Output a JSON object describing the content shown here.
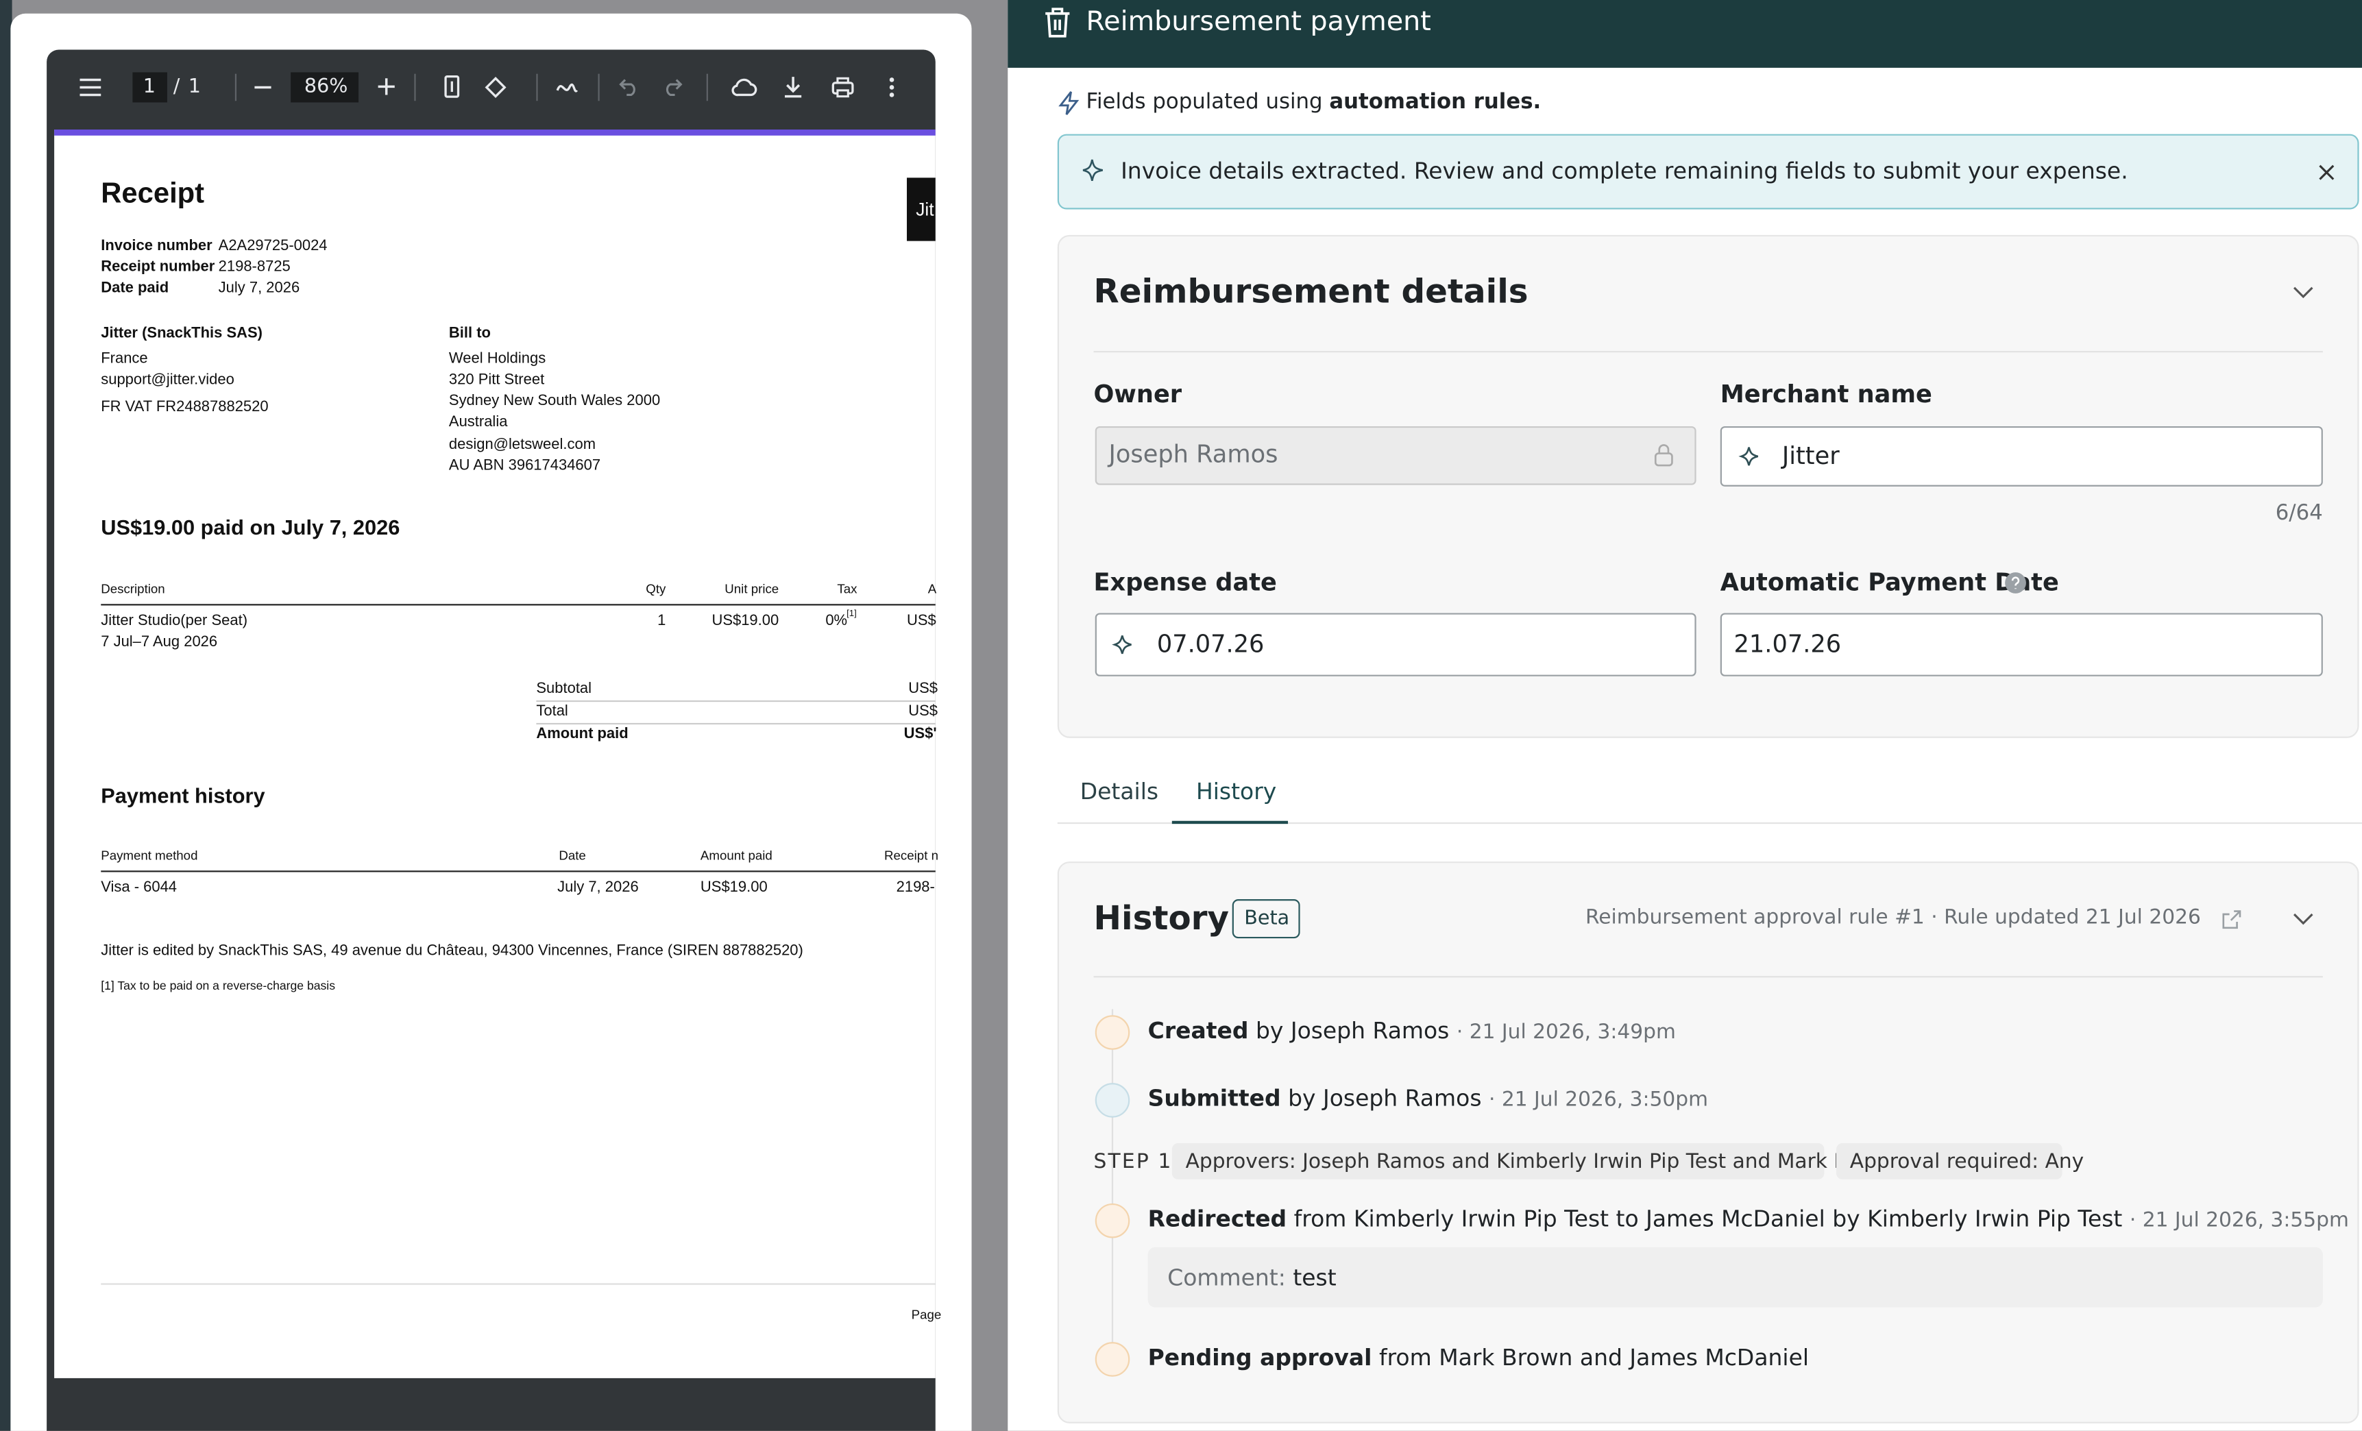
{
  "pdf_viewer": {
    "page_current": "1",
    "page_sep": "/",
    "page_total": "1",
    "zoom": "86%"
  },
  "receipt": {
    "title": "Receipt",
    "logo": "Jit",
    "meta": [
      [
        "Invoice number",
        "A2A29725-0024"
      ],
      [
        "Receipt number",
        "2198-8725"
      ],
      [
        "Date paid",
        "July 7, 2026"
      ]
    ],
    "seller": {
      "name": "Jitter (SnackThis SAS)",
      "lines": [
        "France",
        "support@jitter.video",
        "FR VAT  FR24887882520"
      ]
    },
    "bill_to": {
      "label": "Bill to",
      "lines": [
        "Weel Holdings",
        "320 Pitt Street",
        "Sydney New South Wales 2000",
        "Australia",
        "design@letsweel.com",
        "AU ABN  39617434607"
      ]
    },
    "amount_heading": "US$19.00 paid on July 7, 2026",
    "line_headers": [
      "Description",
      "Qty",
      "Unit price",
      "Tax",
      "A"
    ],
    "line_row": {
      "description": "Jitter Studio(per Seat)",
      "period": "7 Jul–7 Aug 2026",
      "qty": "1",
      "unit_price": "US$19.00",
      "tax": "0%",
      "tax_note": "[1]",
      "amount": "US$"
    },
    "totals": [
      [
        "Subtotal",
        "US$"
      ],
      [
        "Total",
        "US$"
      ],
      [
        "Amount paid",
        "US$'"
      ]
    ],
    "payment_history": {
      "title": "Payment history",
      "headers": [
        "Payment method",
        "Date",
        "Amount paid",
        "Receipt n"
      ],
      "row": [
        "Visa - 6044",
        "July 7, 2026",
        "US$19.00",
        "2198-"
      ]
    },
    "footer_note": "Jitter is edited by SnackThis SAS, 49 avenue du Château, 94300 Vincennes, France (SIREN 887882520)",
    "footnote": "[1] Tax to be paid on a reverse-charge basis",
    "page_label": "Page"
  },
  "panel": {
    "header_title": "Reimbursement payment",
    "automation": {
      "prefix": "Fields populated using",
      "bold": "automation rules."
    },
    "banner": "Invoice details extracted. Review and complete remaining fields to submit your expense.",
    "details": {
      "title": "Reimbursement details",
      "owner_label": "Owner",
      "owner_value": "Joseph Ramos",
      "merchant_label": "Merchant name",
      "merchant_value": "Jitter",
      "merchant_count": "6/64",
      "expense_date_label": "Expense date",
      "expense_date_value": "07.07.26",
      "auto_date_label": "Automatic Payment Date",
      "auto_date_value": "21.07.26"
    },
    "tabs": [
      "Details",
      "History"
    ],
    "history": {
      "title": "History",
      "badge": "Beta",
      "rule_info": "Reimbursement approval rule #1 · Rule updated 21 Jul 2026",
      "created": {
        "action": "Created",
        "detail": "by Joseph Ramos",
        "time": "· 21 Jul 2026, 3:49pm"
      },
      "submitted": {
        "action": "Submitted",
        "detail": "by Joseph Ramos",
        "time": "· 21 Jul 2026, 3:50pm"
      },
      "step": {
        "label": "STEP 1",
        "chips": [
          "Approvers: Joseph Ramos and Kimberly Irwin Pip Test and Mark Brown",
          "Approval required: Any"
        ]
      },
      "redirected": {
        "action": "Redirected",
        "detail": "from Kimberly Irwin Pip Test to James McDaniel by Kimberly Irwin Pip Test",
        "time": "· 21 Jul 2026, 3:55pm"
      },
      "comment": {
        "label": "Comment:",
        "text": "test"
      },
      "pending": {
        "action": "Pending approval",
        "detail": "from Mark Brown and James McDaniel"
      }
    }
  }
}
